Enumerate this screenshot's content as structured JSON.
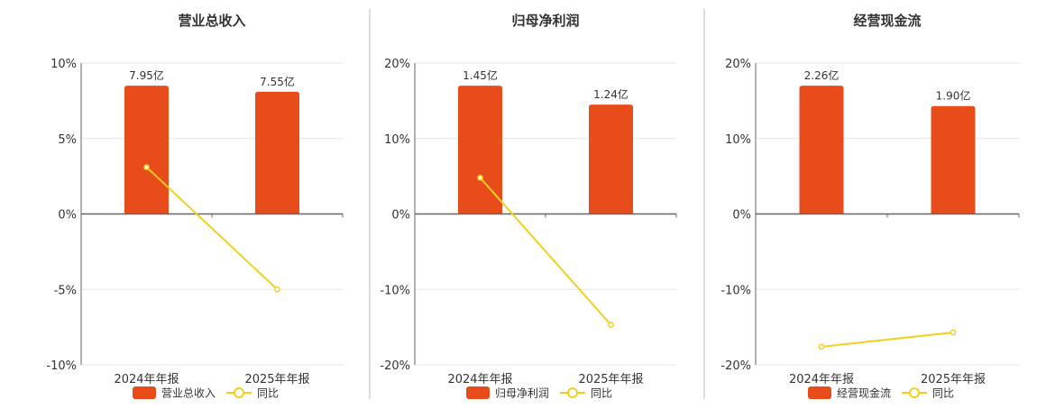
{
  "colors": {
    "bar": "#e84c1a",
    "line": "#f2cf1d",
    "axis": "#666666",
    "grid": "#e6e6e6",
    "divider": "#bbbbbb",
    "text": "#333333"
  },
  "legend_line_label": "同比",
  "chart_data": [
    {
      "type": "bar",
      "title": "营业总收入",
      "categories": [
        "2024年年报",
        "2025年年报"
      ],
      "series": [
        {
          "name": "营业总收入",
          "type": "bar",
          "values": [
            8.5,
            8.1
          ],
          "labels": [
            "7.95亿",
            "7.55亿"
          ]
        },
        {
          "name": "同比",
          "type": "line",
          "values": [
            3.1,
            -5.0
          ]
        }
      ],
      "yticks": [
        "10%",
        "5%",
        "0%",
        "-5%",
        "-10%"
      ],
      "ylim": [
        -10,
        10
      ]
    },
    {
      "type": "bar",
      "title": "归母净利润",
      "categories": [
        "2024年年报",
        "2025年年报"
      ],
      "series": [
        {
          "name": "归母净利润",
          "type": "bar",
          "values": [
            17.0,
            14.5
          ],
          "labels": [
            "1.45亿",
            "1.24亿"
          ]
        },
        {
          "name": "同比",
          "type": "line",
          "values": [
            4.8,
            -14.7
          ]
        }
      ],
      "yticks": [
        "20%",
        "10%",
        "0%",
        "-10%",
        "-20%"
      ],
      "ylim": [
        -20,
        20
      ]
    },
    {
      "type": "bar",
      "title": "经营现金流",
      "categories": [
        "2024年年报",
        "2025年年报"
      ],
      "series": [
        {
          "name": "经营现金流",
          "type": "bar",
          "values": [
            17.0,
            14.3
          ],
          "labels": [
            "2.26亿",
            "1.90亿"
          ]
        },
        {
          "name": "同比",
          "type": "line",
          "values": [
            -17.6,
            -15.7
          ]
        }
      ],
      "yticks": [
        "20%",
        "10%",
        "0%",
        "-10%",
        "-20%"
      ],
      "ylim": [
        -20,
        20
      ]
    }
  ]
}
